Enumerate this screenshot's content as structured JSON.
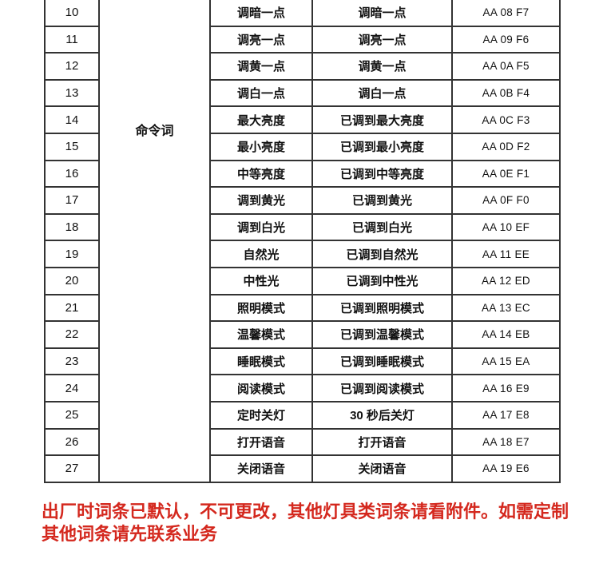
{
  "table": {
    "group_label": "命令词",
    "rows": [
      {
        "num": "10",
        "command": "调暗一点",
        "response": "调暗一点",
        "code": "AA 08 F7"
      },
      {
        "num": "11",
        "command": "调亮一点",
        "response": "调亮一点",
        "code": "AA 09 F6"
      },
      {
        "num": "12",
        "command": "调黄一点",
        "response": "调黄一点",
        "code": "AA 0A F5"
      },
      {
        "num": "13",
        "command": "调白一点",
        "response": "调白一点",
        "code": "AA 0B F4"
      },
      {
        "num": "14",
        "command": "最大亮度",
        "response": "已调到最大亮度",
        "code": "AA 0C F3"
      },
      {
        "num": "15",
        "command": "最小亮度",
        "response": "已调到最小亮度",
        "code": "AA 0D F2"
      },
      {
        "num": "16",
        "command": "中等亮度",
        "response": "已调到中等亮度",
        "code": "AA 0E F1"
      },
      {
        "num": "17",
        "command": "调到黄光",
        "response": "已调到黄光",
        "code": "AA 0F F0"
      },
      {
        "num": "18",
        "command": "调到白光",
        "response": "已调到白光",
        "code": "AA 10 EF"
      },
      {
        "num": "19",
        "command": "自然光",
        "response": "已调到自然光",
        "code": "AA 11 EE"
      },
      {
        "num": "20",
        "command": "中性光",
        "response": "已调到中性光",
        "code": "AA 12 ED"
      },
      {
        "num": "21",
        "command": "照明模式",
        "response": "已调到照明模式",
        "code": "AA 13 EC"
      },
      {
        "num": "22",
        "command": "温馨模式",
        "response": "已调到温馨模式",
        "code": "AA 14 EB"
      },
      {
        "num": "23",
        "command": "睡眠模式",
        "response": "已调到睡眠模式",
        "code": "AA 15 EA"
      },
      {
        "num": "24",
        "command": "阅读模式",
        "response": "已调到阅读模式",
        "code": "AA 16 E9"
      },
      {
        "num": "25",
        "command": "定时关灯",
        "response": "30 秒后关灯",
        "code": "AA 17 E8"
      },
      {
        "num": "26",
        "command": "打开语音",
        "response": "打开语音",
        "code": "AA 18 E7"
      },
      {
        "num": "27",
        "command": "关闭语音",
        "response": "关闭语音",
        "code": "AA 19 E6"
      }
    ]
  },
  "note": {
    "text": "出厂时词条已默认，不可更改，其他灯具类词条请看附件。如需定制其他词条请先联系业务"
  },
  "colors": {
    "border": "#333333",
    "note_red": "#d4281e",
    "text": "#111111"
  }
}
